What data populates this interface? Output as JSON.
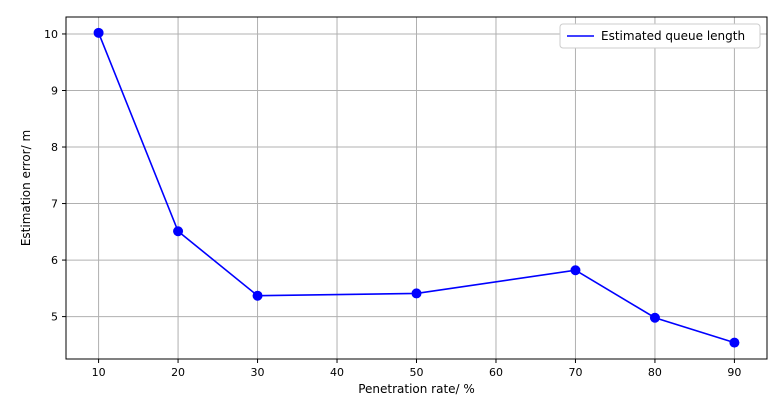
{
  "chart_data": {
    "type": "line",
    "x": [
      10,
      20,
      30,
      50,
      70,
      80,
      90
    ],
    "series": [
      {
        "name": "Estimated queue length",
        "values": [
          10.02,
          6.51,
          5.37,
          5.41,
          5.82,
          4.98,
          4.54
        ],
        "color": "#0000ff",
        "marker": "circle"
      }
    ],
    "xlabel": "Penetration rate/ %",
    "ylabel": "Estimation error/ m",
    "xlim": [
      5.9,
      94.1
    ],
    "ylim": [
      4.25,
      10.3
    ],
    "xticks": [
      10,
      20,
      30,
      40,
      50,
      60,
      70,
      80,
      90
    ],
    "yticks": [
      5,
      6,
      7,
      8,
      9,
      10
    ],
    "grid": true,
    "legend_position": "top-right"
  }
}
